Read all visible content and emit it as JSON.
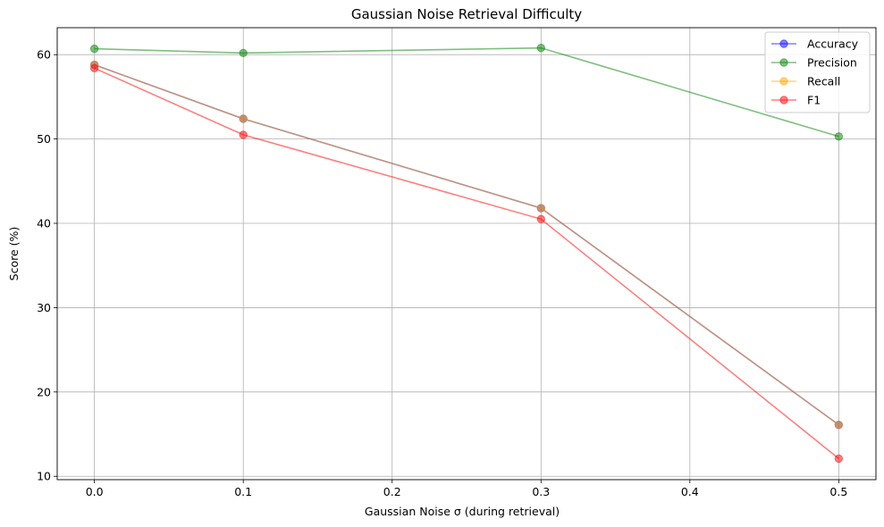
{
  "chart_data": {
    "type": "line",
    "title": "Gaussian Noise Retrieval Difficulty",
    "xlabel": "Gaussian Noise σ (during retrieval)",
    "ylabel": "Score (%)",
    "x": [
      0.0,
      0.1,
      0.3,
      0.5
    ],
    "xticks": [
      0.0,
      0.1,
      0.2,
      0.3,
      0.4,
      0.5
    ],
    "xtick_labels": [
      "0.0",
      "0.1",
      "0.2",
      "0.3",
      "0.4",
      "0.5"
    ],
    "yticks": [
      10,
      20,
      30,
      40,
      50,
      60
    ],
    "ytick_labels": [
      "10",
      "20",
      "30",
      "40",
      "50",
      "60"
    ],
    "xlim": [
      -0.025,
      0.525
    ],
    "ylim": [
      9.6,
      63.2
    ],
    "grid": true,
    "legend_position": "top-right",
    "series": [
      {
        "name": "Accuracy",
        "color": "#0000ff",
        "values": [
          58.8,
          52.4,
          41.8,
          16.1
        ]
      },
      {
        "name": "Precision",
        "color": "#008000",
        "values": [
          60.7,
          60.2,
          60.8,
          50.3
        ]
      },
      {
        "name": "Recall",
        "color": "#ffa500",
        "values": [
          58.8,
          52.4,
          41.8,
          16.1
        ]
      },
      {
        "name": "F1",
        "color": "#ff0000",
        "values": [
          58.4,
          50.5,
          40.5,
          12.1
        ]
      }
    ]
  }
}
